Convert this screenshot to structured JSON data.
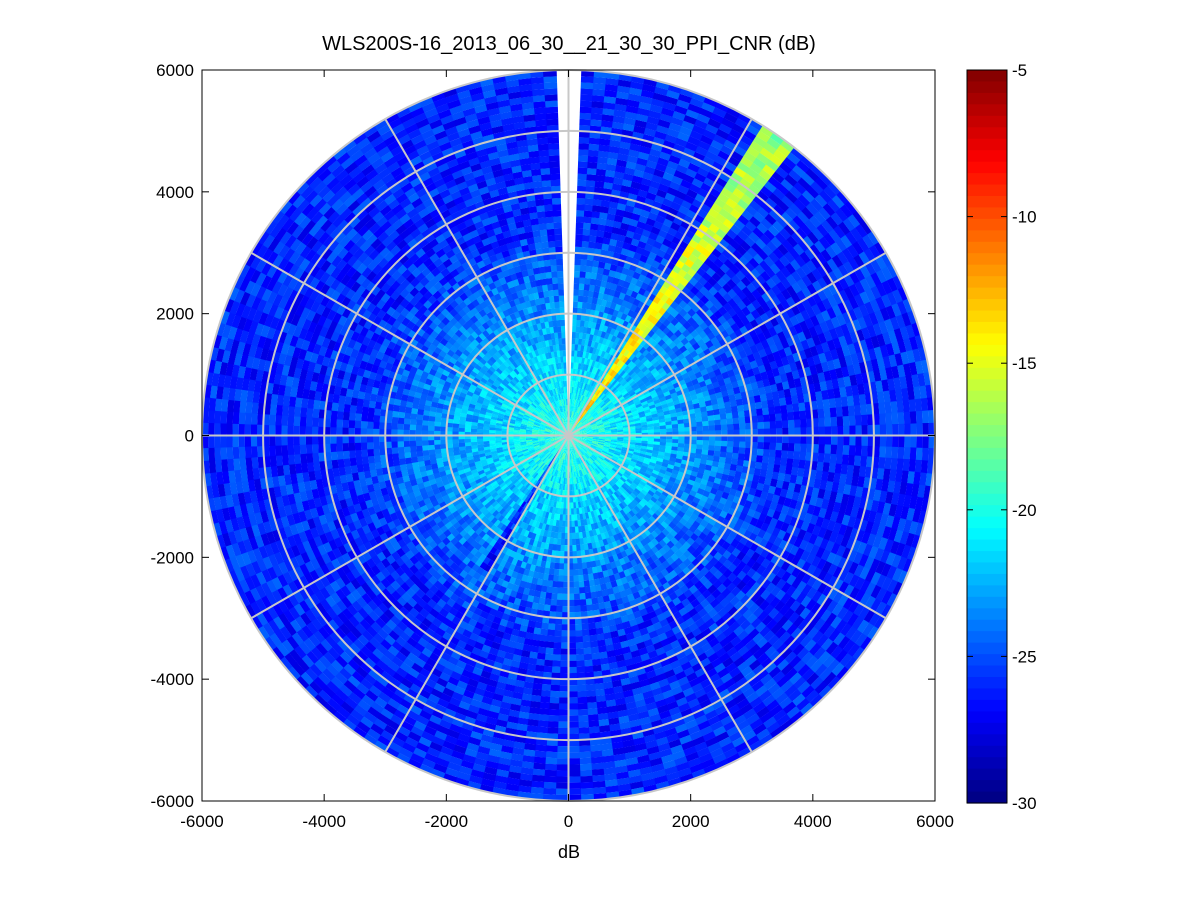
{
  "chart_data": {
    "type": "heatmap",
    "subtype": "polar-ppi-scan",
    "title": "WLS200S-16_2013_06_30__21_30_30_PPI_CNR (dB)",
    "xlabel": "dB",
    "ylabel": "",
    "xlim": [
      -6000,
      6000
    ],
    "ylim": [
      -6000,
      6000
    ],
    "x_ticks": [
      "-6000",
      "-4000",
      "-2000",
      "0",
      "2000",
      "4000",
      "6000"
    ],
    "y_ticks": [
      "6000",
      "4000",
      "2000",
      "0",
      "-2000",
      "-4000",
      "-6000"
    ],
    "grid": true,
    "colormap": "jet",
    "colorbar": {
      "min": -30,
      "max": -5,
      "ticks": [
        "-5",
        "-10",
        "-15",
        "-20",
        "-25",
        "-30"
      ]
    },
    "polar": {
      "max_range_m": 6000,
      "range_rings_m": [
        1000,
        2000,
        3000,
        4000,
        5000,
        6000
      ],
      "spoke_step_deg": 30,
      "range_bins": 60,
      "azimuth_bins": 180,
      "cnr_near_db": -19.5,
      "cnr_far_db": -26,
      "gap_azimuths_deg": [
        [
          -1.5,
          1.5
        ]
      ],
      "high_cnr_sectors": [
        {
          "az_from_deg": 33,
          "az_to_deg": 38,
          "range_from_m": 0,
          "range_to_m": 6000,
          "cnr_db": [
            -13,
            -17
          ]
        },
        {
          "az_from_deg": 210,
          "az_to_deg": 214,
          "range_from_m": 0,
          "range_to_m": 2600,
          "cnr_db": [
            -24,
            -27
          ]
        }
      ]
    }
  }
}
